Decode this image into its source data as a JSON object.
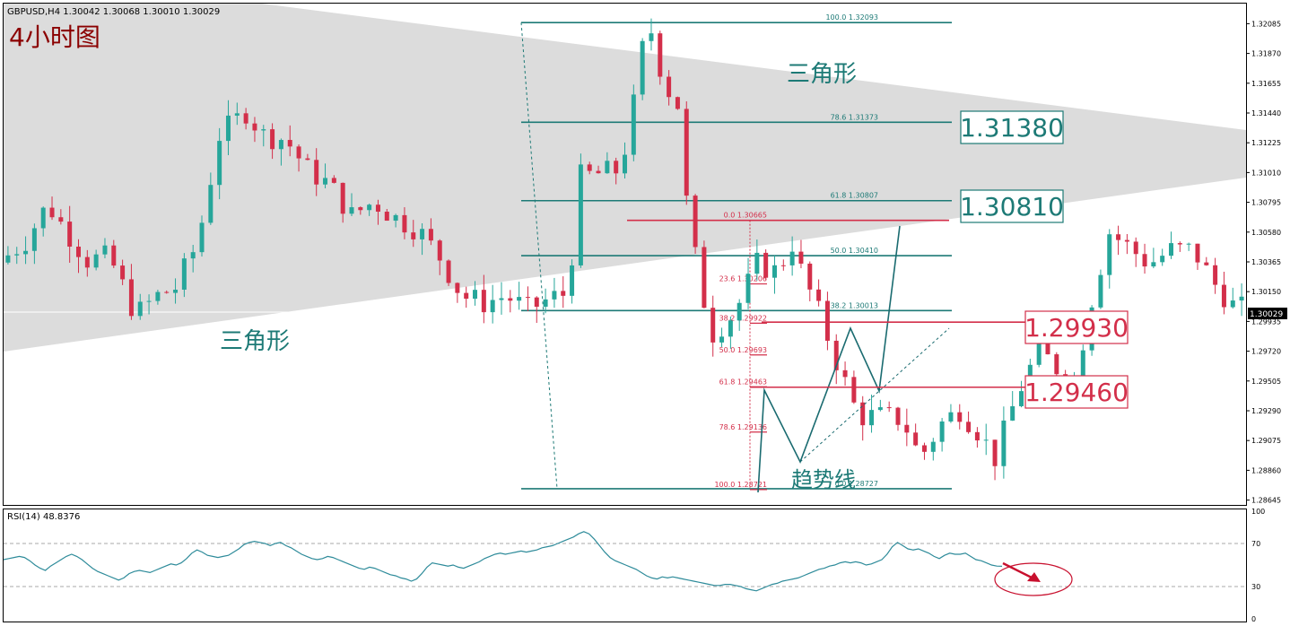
{
  "header": {
    "symbol_line": "GBPUSD,H4  1.30042 1.30068 1.30010 1.30029",
    "timeframe_label": "4小时图"
  },
  "annotations": {
    "triangle_upper": "三角形",
    "triangle_lower": "三角形",
    "trendline": "趋势线"
  },
  "colors": {
    "bull": "#26a69a",
    "bear": "#d32f4a",
    "fib_teal": "#1d7a76",
    "fib_red": "#d32f4a",
    "triangle_fill": "#dcdcdc",
    "rsi_line": "#2e8b9a",
    "arrow": "#c8102e"
  },
  "price_axis": {
    "ticks": [
      "1.32085",
      "1.31870",
      "1.31655",
      "1.31440",
      "1.31225",
      "1.31010",
      "1.30795",
      "1.30580",
      "1.30365",
      "1.30150",
      "1.29935",
      "1.29720",
      "1.29505",
      "1.29290",
      "1.29075",
      "1.28860",
      "1.28645"
    ],
    "current_price": "1.30029"
  },
  "chart_data": {
    "type": "candlestick",
    "symbol": "GBPUSD",
    "timeframe": "H4",
    "ylim": [
      1.2861,
      1.3223
    ],
    "current_price": 1.30029,
    "fib_upper": {
      "levels": [
        {
          "label": "100.0  1.32093",
          "value": 1.32093
        },
        {
          "label": "78.6  1.31373",
          "value": 1.31373
        },
        {
          "label": "61.8  1.30807",
          "value": 1.30807
        },
        {
          "label": "50.0  1.30410",
          "value": 1.3041
        },
        {
          "label": "38.2  1.30013",
          "value": 1.30013
        },
        {
          "label": "0.0  1.28727",
          "value": 1.28727
        }
      ]
    },
    "fib_lower": {
      "levels": [
        {
          "label": "0.0  1.30665",
          "value": 1.30665
        },
        {
          "label": "23.6  1.30206",
          "value": 1.30206
        },
        {
          "label": "38.2  1.29922",
          "value": 1.29922
        },
        {
          "label": "50.0  1.29693",
          "value": 1.29693
        },
        {
          "label": "61.8  1.29463",
          "value": 1.29463
        },
        {
          "label": "78.6  1.29136",
          "value": 1.29136
        },
        {
          "label": "100.0  1.28721",
          "value": 1.28721
        }
      ]
    },
    "key_levels": [
      {
        "label": "1.31380",
        "value": 1.3138,
        "color": "teal"
      },
      {
        "label": "1.30810",
        "value": 1.3081,
        "color": "teal"
      },
      {
        "label": "1.29930",
        "value": 1.2993,
        "color": "red"
      },
      {
        "label": "1.29460",
        "value": 1.2946,
        "color": "red"
      }
    ],
    "rsi": {
      "label": "RSI(14) 48.8376",
      "levels": [
        70,
        30
      ],
      "scale_labels": [
        "100",
        "70",
        "30",
        "0"
      ],
      "values": [
        55,
        56,
        57,
        58,
        57,
        54,
        50,
        47,
        45,
        49,
        52,
        55,
        58,
        60,
        58,
        55,
        51,
        47,
        44,
        42,
        40,
        38,
        36,
        38,
        42,
        44,
        45,
        44,
        43,
        45,
        47,
        49,
        51,
        50,
        52,
        56,
        61,
        64,
        62,
        59,
        58,
        57,
        58,
        59,
        62,
        65,
        69,
        71,
        72,
        71,
        70,
        68,
        70,
        71,
        68,
        66,
        63,
        60,
        58,
        56,
        55,
        56,
        58,
        57,
        55,
        53,
        51,
        49,
        47,
        46,
        48,
        47,
        45,
        43,
        41,
        40,
        38,
        37,
        35,
        37,
        42,
        48,
        52,
        51,
        50,
        49,
        50,
        48,
        47,
        49,
        51,
        53,
        56,
        58,
        60,
        61,
        60,
        61,
        62,
        63,
        62,
        63,
        64,
        66,
        67,
        68,
        70,
        72,
        74,
        76,
        79,
        81,
        79,
        74,
        68,
        62,
        57,
        54,
        52,
        50,
        48,
        46,
        43,
        40,
        38,
        37,
        39,
        38,
        39,
        38,
        37,
        36,
        35,
        34,
        33,
        32,
        31,
        31,
        32,
        32,
        31,
        30,
        28,
        27,
        26,
        28,
        30,
        32,
        33,
        35,
        36,
        37,
        38,
        40,
        42,
        44,
        46,
        47,
        49,
        50,
        52,
        53,
        52,
        53,
        52,
        50,
        51,
        53,
        55,
        60,
        67,
        71,
        68,
        65,
        64,
        65,
        63,
        61,
        58,
        56,
        59,
        61,
        60,
        60,
        61,
        58,
        55,
        54,
        52,
        50,
        49,
        48.84
      ]
    }
  }
}
